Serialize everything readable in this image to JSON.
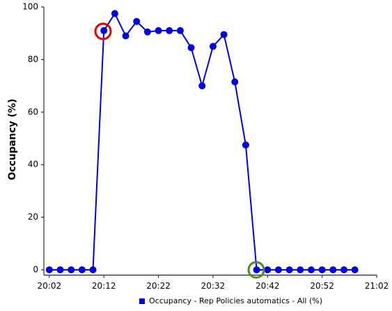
{
  "chart_data": {
    "type": "line",
    "y_label": "Occupancy (%)",
    "x": [
      "20:02",
      "20:04",
      "20:06",
      "20:08",
      "20:10",
      "20:12",
      "20:14",
      "20:16",
      "20:18",
      "20:20",
      "20:22",
      "20:24",
      "20:26",
      "20:28",
      "20:30",
      "20:32",
      "20:34",
      "20:36",
      "20:38",
      "20:40",
      "20:42",
      "20:44",
      "20:46",
      "20:48",
      "20:50",
      "20:52",
      "20:54",
      "20:56",
      "20:58"
    ],
    "series": [
      {
        "name": "Occupancy - Rep Policies automatics - All (%)",
        "color": "#0000e6",
        "values": [
          0,
          0,
          0,
          0,
          0,
          91,
          97.5,
          89,
          94.5,
          90.5,
          91,
          91,
          91,
          84.5,
          70,
          85,
          89.5,
          71.5,
          47.5,
          0,
          0,
          0,
          0,
          0,
          0,
          0,
          0,
          0,
          0
        ]
      }
    ],
    "xlim": [
      "20:01",
      "21:02"
    ],
    "xticks": [
      "20:02",
      "20:12",
      "20:22",
      "20:32",
      "20:42",
      "20:52",
      "21:02"
    ],
    "ylim": [
      -2,
      100
    ],
    "yticks": [
      0,
      20,
      40,
      60,
      80,
      100
    ],
    "legend": "bottom"
  }
}
